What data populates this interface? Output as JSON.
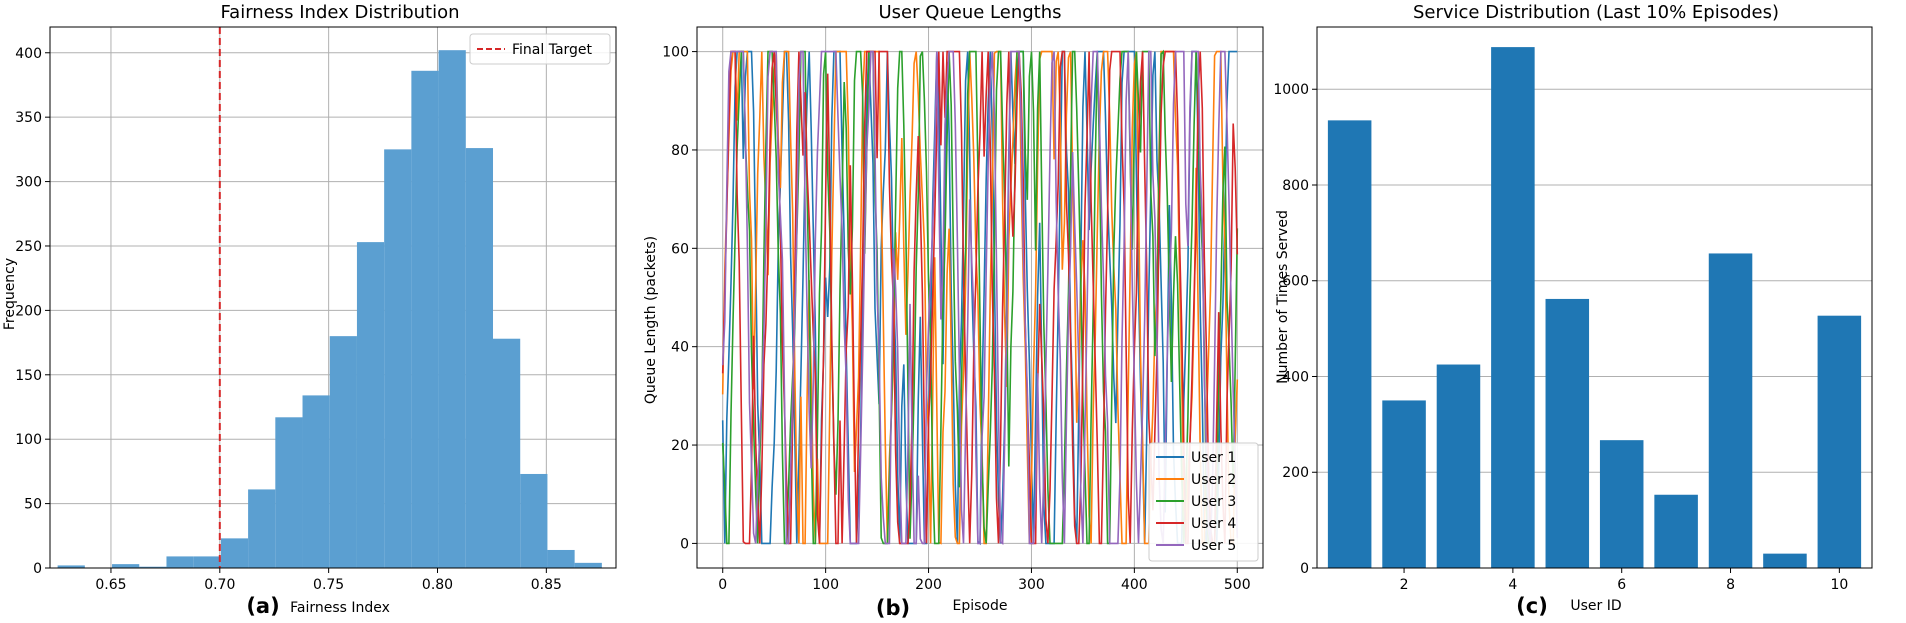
{
  "colors": {
    "hist": "#5b9fd1",
    "bar": "#1f77b4",
    "target": "#d62728",
    "grid": "#b0b0b0",
    "series": [
      "#1f77b4",
      "#ff7f0e",
      "#2ca02c",
      "#d62728",
      "#9467bd"
    ]
  },
  "chart_data": [
    {
      "type": "histogram",
      "panel_label": "(a)",
      "title": "Fairness Index Distribution",
      "xlabel": "Fairness Index",
      "ylabel": "Frequency",
      "xlim": [
        0.622,
        0.882
      ],
      "ylim": [
        0,
        420
      ],
      "xticks": [
        0.65,
        0.7,
        0.75,
        0.8,
        0.85
      ],
      "xtick_labels": [
        "0.65",
        "0.70",
        "0.75",
        "0.80",
        "0.85"
      ],
      "yticks": [
        0,
        50,
        100,
        150,
        200,
        250,
        300,
        350,
        400
      ],
      "bin_edges": [
        0.6255,
        0.638,
        0.6505,
        0.663,
        0.6755,
        0.688,
        0.7005,
        0.713,
        0.7255,
        0.738,
        0.7505,
        0.763,
        0.7755,
        0.788,
        0.8005,
        0.813,
        0.8255,
        0.838,
        0.8505,
        0.863,
        0.8755
      ],
      "counts": [
        2,
        0,
        3,
        1,
        9,
        9,
        23,
        61,
        117,
        134,
        180,
        253,
        325,
        386,
        402,
        326,
        178,
        73,
        14,
        4
      ],
      "target_line": {
        "x": 0.7,
        "label": "Final Target"
      }
    },
    {
      "type": "line",
      "panel_label": "(b)",
      "title": "User Queue Lengths",
      "xlabel": "Episode",
      "ylabel": "Queue Length (packets)",
      "xlim": [
        -25,
        525
      ],
      "ylim": [
        -5,
        105
      ],
      "xticks": [
        0,
        100,
        200,
        300,
        400,
        500
      ],
      "yticks": [
        0,
        20,
        40,
        60,
        80,
        100
      ],
      "x_max": 500,
      "series": [
        {
          "name": "User 1",
          "seed": 11
        },
        {
          "name": "User 2",
          "seed": 23
        },
        {
          "name": "User 3",
          "seed": 37
        },
        {
          "name": "User 4",
          "seed": 51
        },
        {
          "name": "User 5",
          "seed": 73
        }
      ]
    },
    {
      "type": "bar",
      "panel_label": "(c)",
      "title": "Service Distribution (Last 10% Episodes)",
      "xlabel": "User ID",
      "ylabel": "Number of Times Served",
      "xlim": [
        0.4,
        10.6
      ],
      "ylim": [
        0,
        1130
      ],
      "xticks": [
        2,
        4,
        6,
        8,
        10
      ],
      "yticks": [
        0,
        200,
        400,
        600,
        800,
        1000
      ],
      "categories": [
        1,
        2,
        3,
        4,
        5,
        6,
        7,
        8,
        9,
        10
      ],
      "values": [
        935,
        350,
        425,
        1088,
        562,
        267,
        153,
        657,
        30,
        527
      ]
    }
  ]
}
